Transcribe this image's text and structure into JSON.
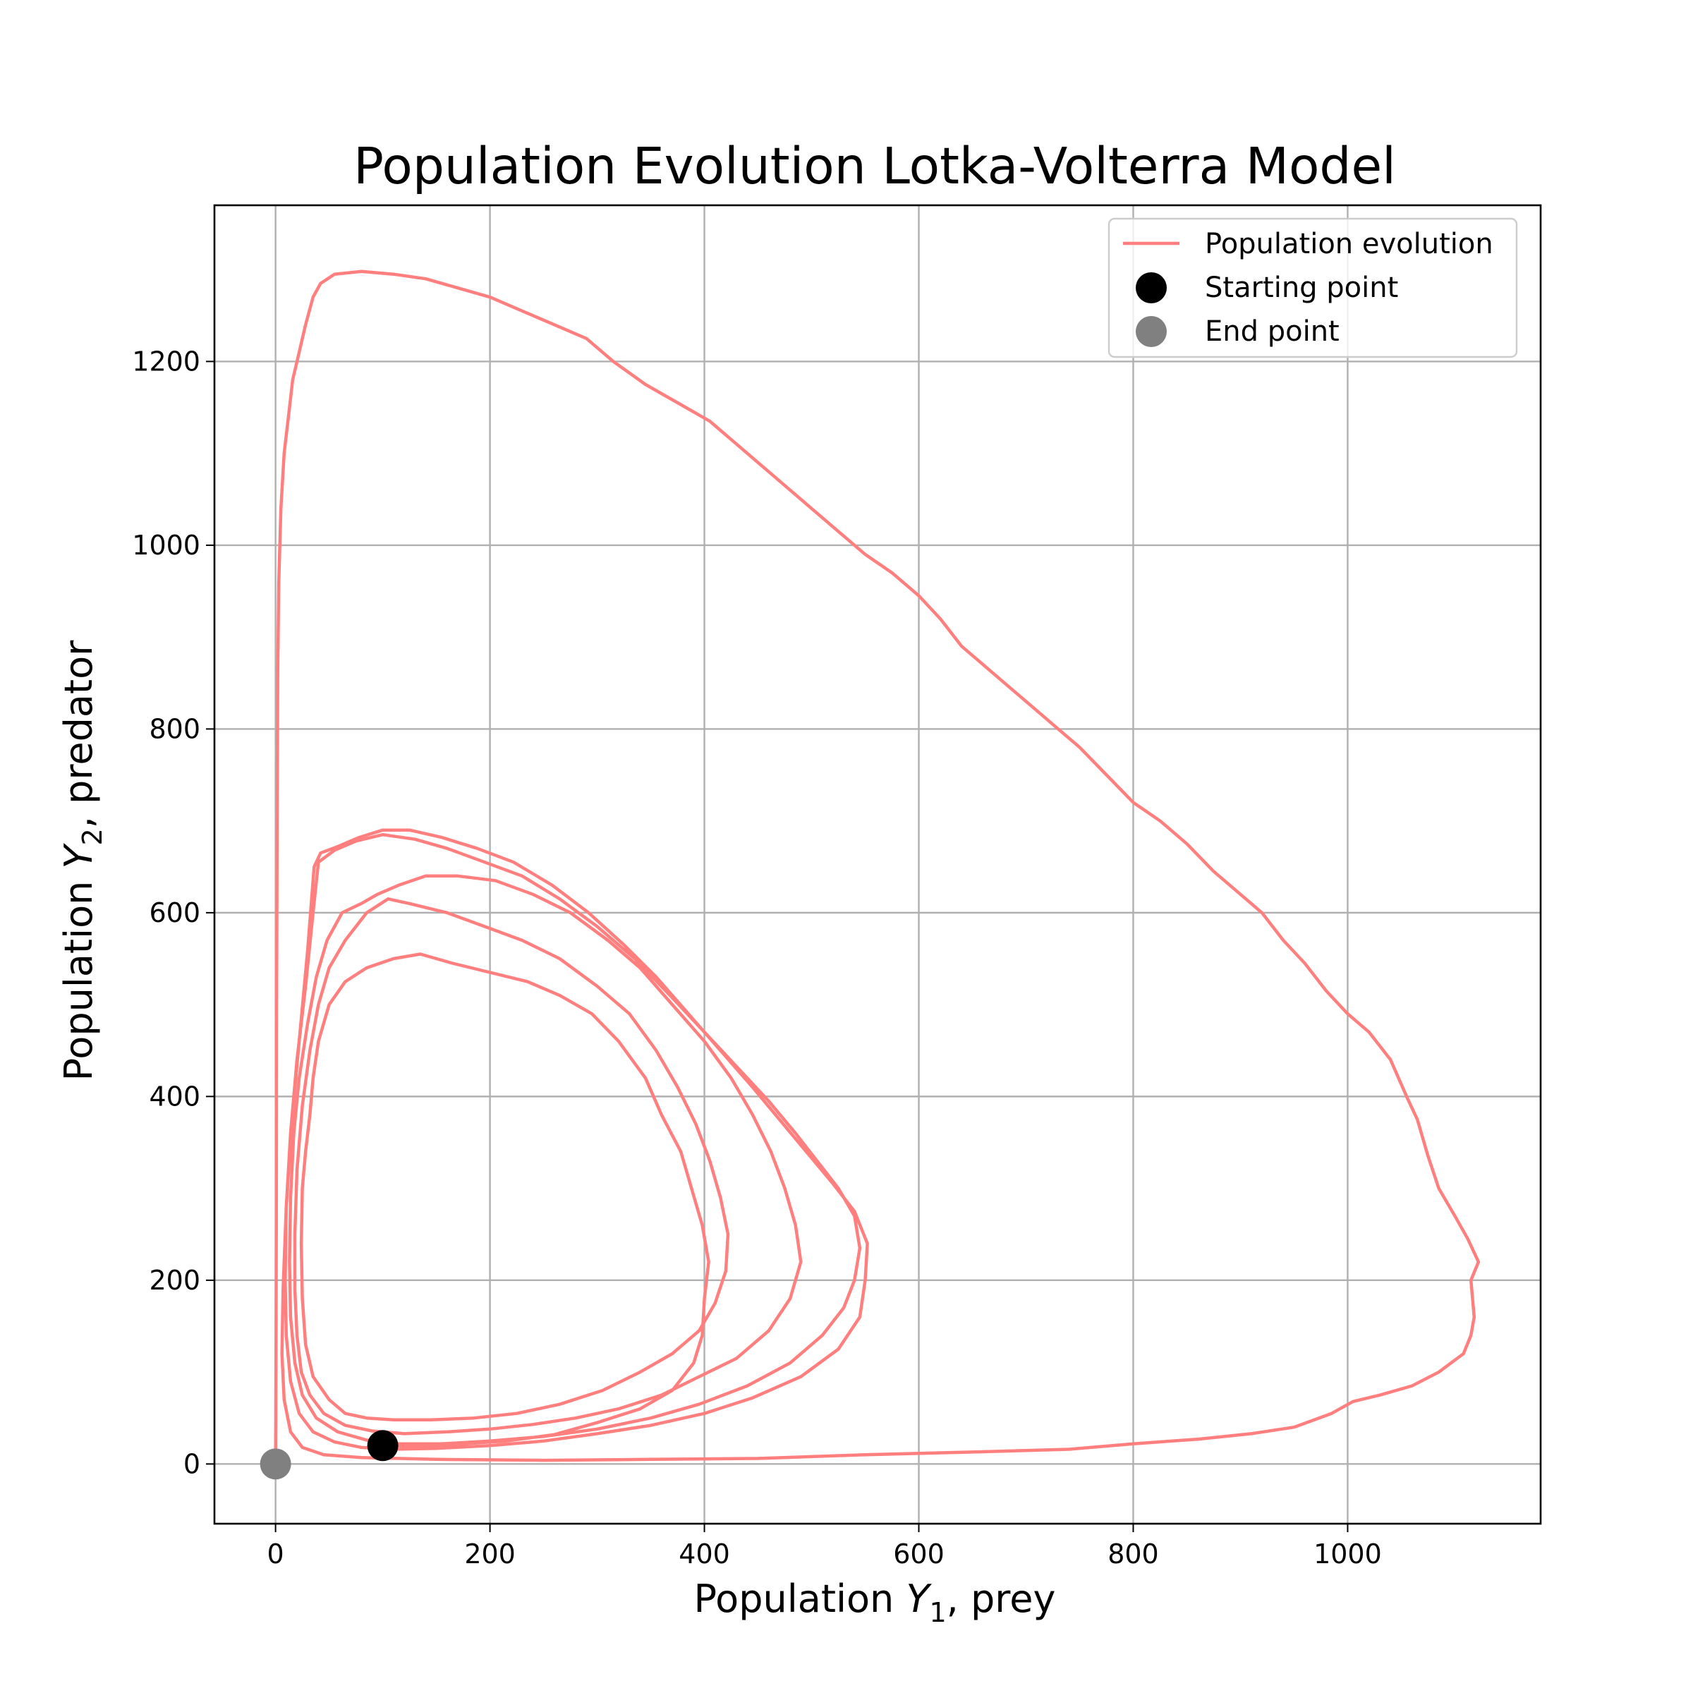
{
  "chart_data": {
    "type": "line",
    "title": "Population Evolution Lotka-Volterra Model",
    "xlabel": {
      "prefix": "Population ",
      "symbol": "Y",
      "sub": "1",
      "suffix": ", prey"
    },
    "ylabel": {
      "prefix": "Population ",
      "symbol": "Y",
      "sub": "2",
      "suffix": ", predator"
    },
    "xlim": [
      -57,
      1180
    ],
    "ylim": [
      -65,
      1370
    ],
    "xticks": [
      0,
      200,
      400,
      600,
      800,
      1000
    ],
    "yticks": [
      0,
      200,
      400,
      600,
      800,
      1000,
      1200
    ],
    "grid": true,
    "legend": {
      "placement": "upper right",
      "entries": [
        "Population evolution",
        "Starting point",
        "End point"
      ]
    },
    "colors": {
      "line": "#ff7f7f",
      "start": "#000000",
      "end": "#808080",
      "grid": "#b0b0b0",
      "axes": "#000000"
    },
    "series": [
      {
        "name": "Population evolution",
        "points": [
          [
            100,
            20
          ],
          [
            135,
            19
          ],
          [
            175,
            22
          ],
          [
            215,
            25
          ],
          [
            260,
            32
          ],
          [
            300,
            45
          ],
          [
            340,
            60
          ],
          [
            370,
            80
          ],
          [
            390,
            110
          ],
          [
            398,
            140
          ],
          [
            400,
            180
          ],
          [
            404,
            220
          ],
          [
            398,
            260
          ],
          [
            388,
            300
          ],
          [
            378,
            340
          ],
          [
            360,
            380
          ],
          [
            345,
            420
          ],
          [
            320,
            460
          ],
          [
            295,
            490
          ],
          [
            265,
            510
          ],
          [
            235,
            525
          ],
          [
            200,
            535
          ],
          [
            165,
            545
          ],
          [
            135,
            555
          ],
          [
            110,
            550
          ],
          [
            85,
            540
          ],
          [
            65,
            525
          ],
          [
            50,
            500
          ],
          [
            40,
            460
          ],
          [
            35,
            420
          ],
          [
            32,
            380
          ],
          [
            28,
            340
          ],
          [
            25,
            300
          ],
          [
            24,
            240
          ],
          [
            25,
            180
          ],
          [
            28,
            130
          ],
          [
            35,
            95
          ],
          [
            50,
            70
          ],
          [
            65,
            55
          ],
          [
            85,
            50
          ],
          [
            110,
            48
          ],
          [
            145,
            48
          ],
          [
            185,
            50
          ],
          [
            225,
            55
          ],
          [
            265,
            65
          ],
          [
            305,
            80
          ],
          [
            340,
            100
          ],
          [
            370,
            120
          ],
          [
            395,
            145
          ],
          [
            410,
            175
          ],
          [
            420,
            210
          ],
          [
            422,
            250
          ],
          [
            415,
            290
          ],
          [
            405,
            330
          ],
          [
            392,
            370
          ],
          [
            375,
            410
          ],
          [
            355,
            450
          ],
          [
            330,
            490
          ],
          [
            300,
            520
          ],
          [
            265,
            550
          ],
          [
            230,
            570
          ],
          [
            195,
            585
          ],
          [
            160,
            600
          ],
          [
            125,
            610
          ],
          [
            105,
            615
          ],
          [
            85,
            600
          ],
          [
            65,
            570
          ],
          [
            50,
            540
          ],
          [
            40,
            500
          ],
          [
            32,
            450
          ],
          [
            25,
            390
          ],
          [
            20,
            320
          ],
          [
            18,
            250
          ],
          [
            18,
            190
          ],
          [
            20,
            140
          ],
          [
            24,
            100
          ],
          [
            32,
            75
          ],
          [
            45,
            55
          ],
          [
            65,
            42
          ],
          [
            90,
            36
          ],
          [
            120,
            33
          ],
          [
            160,
            35
          ],
          [
            200,
            38
          ],
          [
            240,
            43
          ],
          [
            280,
            50
          ],
          [
            320,
            60
          ],
          [
            360,
            75
          ],
          [
            395,
            95
          ],
          [
            430,
            115
          ],
          [
            460,
            145
          ],
          [
            480,
            180
          ],
          [
            490,
            220
          ],
          [
            485,
            260
          ],
          [
            475,
            300
          ],
          [
            462,
            340
          ],
          [
            445,
            380
          ],
          [
            425,
            420
          ],
          [
            400,
            460
          ],
          [
            370,
            500
          ],
          [
            340,
            540
          ],
          [
            310,
            570
          ],
          [
            275,
            600
          ],
          [
            240,
            620
          ],
          [
            205,
            635
          ],
          [
            170,
            640
          ],
          [
            140,
            640
          ],
          [
            115,
            630
          ],
          [
            95,
            620
          ],
          [
            80,
            610
          ],
          [
            62,
            600
          ],
          [
            48,
            570
          ],
          [
            38,
            530
          ],
          [
            30,
            480
          ],
          [
            22,
            420
          ],
          [
            17,
            360
          ],
          [
            14,
            290
          ],
          [
            13,
            220
          ],
          [
            14,
            160
          ],
          [
            18,
            110
          ],
          [
            25,
            75
          ],
          [
            38,
            50
          ],
          [
            58,
            35
          ],
          [
            85,
            26
          ],
          [
            115,
            22
          ],
          [
            155,
            22
          ],
          [
            200,
            25
          ],
          [
            250,
            30
          ],
          [
            300,
            38
          ],
          [
            350,
            50
          ],
          [
            395,
            65
          ],
          [
            440,
            85
          ],
          [
            480,
            110
          ],
          [
            510,
            140
          ],
          [
            530,
            170
          ],
          [
            540,
            200
          ],
          [
            545,
            235
          ],
          [
            540,
            270
          ],
          [
            525,
            300
          ],
          [
            505,
            330
          ],
          [
            485,
            360
          ],
          [
            460,
            395
          ],
          [
            432,
            430
          ],
          [
            400,
            470
          ],
          [
            368,
            510
          ],
          [
            335,
            550
          ],
          [
            300,
            585
          ],
          [
            265,
            615
          ],
          [
            230,
            640
          ],
          [
            195,
            655
          ],
          [
            160,
            670
          ],
          [
            130,
            680
          ],
          [
            100,
            685
          ],
          [
            75,
            678
          ],
          [
            55,
            668
          ],
          [
            40,
            655
          ],
          [
            35,
            600
          ],
          [
            28,
            520
          ],
          [
            20,
            440
          ],
          [
            14,
            360
          ],
          [
            10,
            280
          ],
          [
            9,
            200
          ],
          [
            10,
            140
          ],
          [
            14,
            90
          ],
          [
            22,
            55
          ],
          [
            35,
            35
          ],
          [
            55,
            24
          ],
          [
            80,
            18
          ],
          [
            110,
            16
          ],
          [
            150,
            17
          ],
          [
            200,
            20
          ],
          [
            250,
            25
          ],
          [
            300,
            33
          ],
          [
            350,
            42
          ],
          [
            400,
            55
          ],
          [
            445,
            72
          ],
          [
            490,
            95
          ],
          [
            525,
            125
          ],
          [
            545,
            160
          ],
          [
            550,
            200
          ],
          [
            552,
            240
          ],
          [
            540,
            275
          ],
          [
            520,
            305
          ],
          [
            495,
            340
          ],
          [
            470,
            375
          ],
          [
            445,
            410
          ],
          [
            415,
            450
          ],
          [
            385,
            490
          ],
          [
            355,
            530
          ],
          [
            325,
            565
          ],
          [
            292,
            600
          ],
          [
            258,
            630
          ],
          [
            222,
            655
          ],
          [
            188,
            670
          ],
          [
            155,
            682
          ],
          [
            125,
            690
          ],
          [
            100,
            690
          ],
          [
            78,
            682
          ],
          [
            58,
            672
          ],
          [
            42,
            665
          ],
          [
            36,
            650
          ],
          [
            30,
            560
          ],
          [
            22,
            460
          ],
          [
            15,
            370
          ],
          [
            10,
            280
          ],
          [
            7,
            190
          ],
          [
            6,
            120
          ],
          [
            8,
            70
          ],
          [
            14,
            35
          ],
          [
            25,
            18
          ],
          [
            45,
            10
          ],
          [
            80,
            7
          ],
          [
            150,
            5
          ],
          [
            250,
            4
          ],
          [
            350,
            5
          ],
          [
            450,
            6
          ],
          [
            550,
            10
          ],
          [
            650,
            13
          ],
          [
            740,
            16
          ],
          [
            800,
            22
          ],
          [
            860,
            27
          ],
          [
            910,
            33
          ],
          [
            950,
            40
          ],
          [
            985,
            55
          ],
          [
            1005,
            68
          ],
          [
            1030,
            75
          ],
          [
            1060,
            85
          ],
          [
            1085,
            100
          ],
          [
            1108,
            120
          ],
          [
            1115,
            140
          ],
          [
            1118,
            160
          ],
          [
            1115,
            200
          ],
          [
            1122,
            220
          ],
          [
            1112,
            245
          ],
          [
            1100,
            270
          ],
          [
            1085,
            300
          ],
          [
            1075,
            335
          ],
          [
            1065,
            375
          ],
          [
            1055,
            400
          ],
          [
            1040,
            440
          ],
          [
            1020,
            470
          ],
          [
            1000,
            490
          ],
          [
            980,
            515
          ],
          [
            960,
            545
          ],
          [
            940,
            570
          ],
          [
            920,
            600
          ],
          [
            900,
            620
          ],
          [
            875,
            645
          ],
          [
            850,
            675
          ],
          [
            825,
            700
          ],
          [
            800,
            720
          ],
          [
            775,
            750
          ],
          [
            750,
            780
          ],
          [
            730,
            800
          ],
          [
            705,
            825
          ],
          [
            680,
            850
          ],
          [
            660,
            870
          ],
          [
            640,
            890
          ],
          [
            620,
            920
          ],
          [
            600,
            945
          ],
          [
            575,
            970
          ],
          [
            550,
            990
          ],
          [
            520,
            1020
          ],
          [
            490,
            1050
          ],
          [
            460,
            1080
          ],
          [
            430,
            1110
          ],
          [
            405,
            1135
          ],
          [
            375,
            1155
          ],
          [
            345,
            1175
          ],
          [
            315,
            1200
          ],
          [
            290,
            1225
          ],
          [
            260,
            1240
          ],
          [
            230,
            1255
          ],
          [
            200,
            1270
          ],
          [
            170,
            1280
          ],
          [
            140,
            1290
          ],
          [
            110,
            1295
          ],
          [
            80,
            1298
          ],
          [
            55,
            1295
          ],
          [
            42,
            1285
          ],
          [
            35,
            1270
          ],
          [
            28,
            1240
          ],
          [
            22,
            1210
          ],
          [
            16,
            1180
          ],
          [
            12,
            1140
          ],
          [
            8,
            1100
          ],
          [
            5,
            1040
          ],
          [
            3,
            960
          ],
          [
            2,
            860
          ],
          [
            1.5,
            700
          ],
          [
            1,
            500
          ],
          [
            0.8,
            300
          ],
          [
            0.5,
            150
          ],
          [
            0.2,
            40
          ],
          [
            0,
            0
          ]
        ]
      }
    ],
    "start_point": {
      "x": 100,
      "y": 20
    },
    "end_point": {
      "x": 0,
      "y": 0
    }
  }
}
